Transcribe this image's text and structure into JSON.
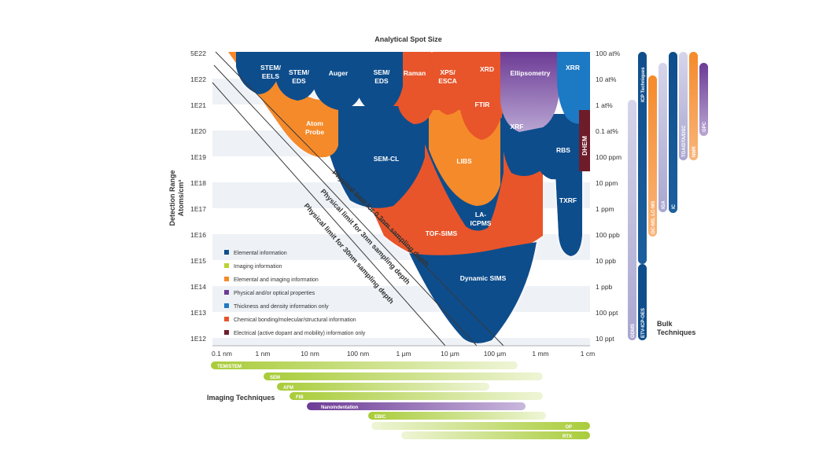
{
  "title": "Analytical Spot Size",
  "y_axis_label": [
    "Detection Range",
    "Atoms/cm³"
  ],
  "y_ticks_left": [
    "5E22",
    "1E22",
    "1E21",
    "1E20",
    "1E19",
    "1E18",
    "1E17",
    "1E16",
    "1E15",
    "1E14",
    "1E13",
    "1E12"
  ],
  "y_ticks_right": [
    "100 at%",
    "10 at%",
    "1 at%",
    "0.1 at%",
    "100 ppm",
    "10 ppm",
    "1 ppm",
    "100 ppb",
    "10 ppb",
    "1 ppb",
    "100 ppt",
    "10 ppt"
  ],
  "x_ticks": [
    "0.1 nm",
    "1 nm",
    "10 nm",
    "100 nm",
    "1 µm",
    "10 µm",
    "100 µm",
    "1 mm",
    "1 cm"
  ],
  "physical_limits": [
    "Physical limit for 0.3nm sampling depth",
    "Physical limit for 3nm sampling depth",
    "Physical limit for 30nm sampling depth"
  ],
  "techniques": {
    "stem_eels": [
      "STEM/",
      "EELS"
    ],
    "stem_eds": [
      "STEM/",
      "EDS"
    ],
    "auger": "Auger",
    "sem_eds": [
      "SEM/",
      "EDS"
    ],
    "raman": "Raman",
    "xps": [
      "XPS/",
      "ESCA"
    ],
    "xrd": "XRD",
    "ellipsometry": "Ellipsometry",
    "xrr": "XRR",
    "ftir": "FTIR",
    "atom_probe": [
      "Atom",
      "Probe"
    ],
    "xrf": "XRF",
    "dhem": "DHEM",
    "sem_cl": "SEM-CL",
    "libs": "LIBS",
    "rbs": "RBS",
    "txrf": "TXRF",
    "la_icpms": [
      "LA-",
      "ICPMS"
    ],
    "tof_sims": "TOF-SIMS",
    "dynamic_sims": "Dynamic SIMS"
  },
  "legend": [
    {
      "label": "Elemental information",
      "color": "#0f4e8c"
    },
    {
      "label": "Imaging information",
      "color": "#b8d433"
    },
    {
      "label": "Elemental and imaging information",
      "color": "#f58a2a"
    },
    {
      "label": "Physical and/or optical properties",
      "color": "#6d3b96"
    },
    {
      "label": "Thickness and density information only",
      "color": "#1f79c4"
    },
    {
      "label": "Chemical bonding/molecular/structural information",
      "color": "#e8542a"
    },
    {
      "label": "Electrical (active dopant and mobility) information only",
      "color": "#6e1f2b"
    }
  ],
  "bulk_title": [
    "Bulk",
    "Techniques"
  ],
  "bulk_bars": [
    "GDMS",
    "ICP Techniques",
    "ETV-ICP-OES",
    "GC-MS, LC-MS",
    "IGA",
    "IC",
    "TGA/DTA/DSC",
    "NMR",
    "GPC"
  ],
  "imaging_title": "Imaging Techniques",
  "imaging_bars": [
    "TEM/STEM",
    "SEM",
    "AFM",
    "FIB",
    "Nanoindentation",
    "EBIC",
    "OP",
    "RTX"
  ]
}
